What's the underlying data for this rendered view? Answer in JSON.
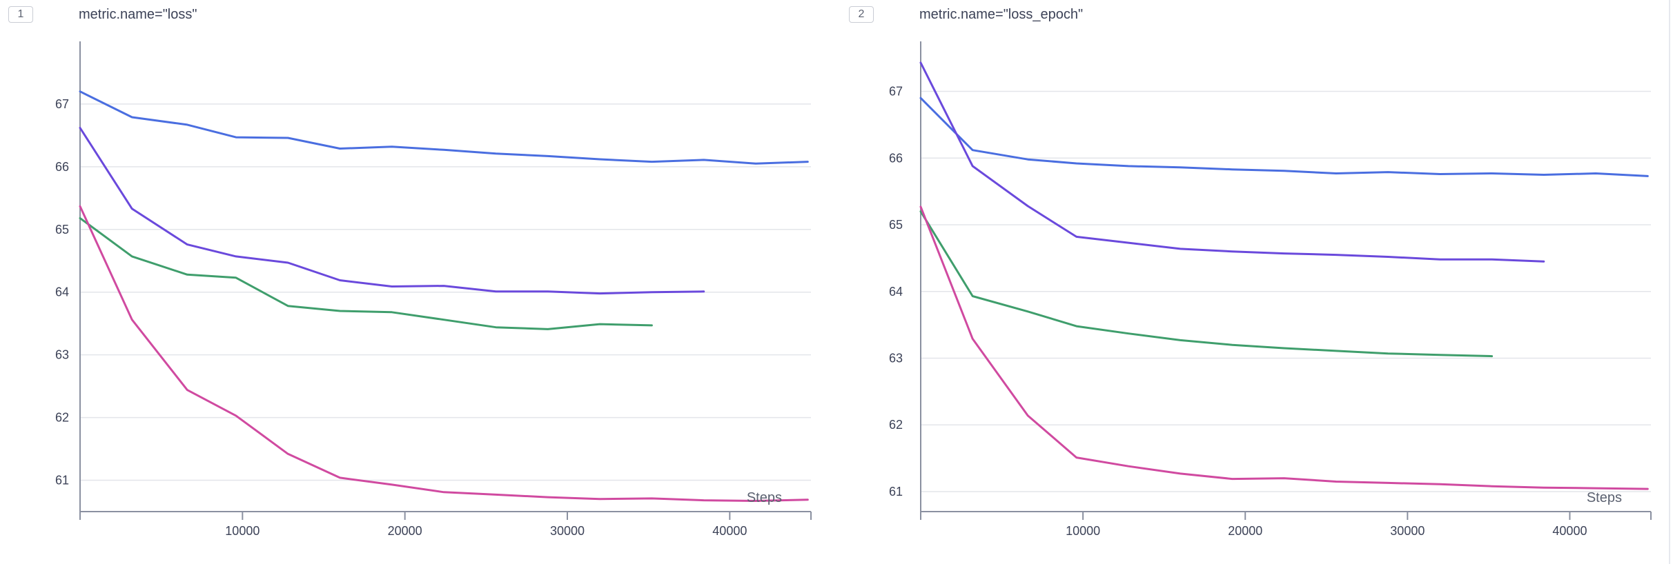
{
  "colors": {
    "axis": "#8a90a0",
    "grid": "#e3e5ea",
    "series": [
      "#4a6ee0",
      "#6a49dc",
      "#3f9e6c",
      "#d04aa0"
    ]
  },
  "panels": [
    {
      "index": "1",
      "title": "metric.name=\"loss\""
    },
    {
      "index": "2",
      "title": "metric.name=\"loss_epoch\""
    }
  ],
  "chart_data": [
    {
      "type": "line",
      "title": "metric.name=\"loss\"",
      "xlabel": "Steps",
      "ylabel": "",
      "xlim": [
        0,
        45000
      ],
      "ylim": [
        60.5,
        68.0
      ],
      "xticks": [
        10000,
        20000,
        30000,
        40000
      ],
      "yticks": [
        61,
        62,
        63,
        64,
        65,
        66,
        67
      ],
      "grid": true,
      "series": [
        {
          "x": [
            0,
            3200,
            6600,
            9600,
            12800,
            16000,
            19200,
            22400,
            25600,
            28800,
            32000,
            35200,
            38400,
            41600,
            44800
          ],
          "y": [
            67.2,
            66.79,
            66.67,
            66.47,
            66.46,
            66.29,
            66.32,
            66.27,
            66.21,
            66.17,
            66.12,
            66.08,
            66.11,
            66.05,
            66.08
          ]
        },
        {
          "x": [
            0,
            3200,
            6600,
            9600,
            12800,
            16000,
            19200,
            22400,
            25600,
            28800,
            32000,
            35200,
            38400
          ],
          "y": [
            66.62,
            65.33,
            64.76,
            64.57,
            64.47,
            64.19,
            64.09,
            64.1,
            64.01,
            64.01,
            63.98,
            64.0,
            64.01
          ]
        },
        {
          "x": [
            0,
            3200,
            6600,
            9600,
            12800,
            16000,
            19200,
            22400,
            25600,
            28800,
            32000,
            35200
          ],
          "y": [
            65.18,
            64.57,
            64.28,
            64.23,
            63.78,
            63.7,
            63.68,
            63.56,
            63.44,
            63.41,
            63.49,
            63.47
          ]
        },
        {
          "x": [
            0,
            3200,
            6600,
            9600,
            12800,
            16000,
            19200,
            22400,
            25600,
            28800,
            32000,
            35200,
            38400,
            41600,
            44800
          ],
          "y": [
            65.37,
            63.56,
            62.44,
            62.03,
            61.42,
            61.04,
            60.93,
            60.81,
            60.77,
            60.73,
            60.7,
            60.71,
            60.68,
            60.67,
            60.69
          ]
        }
      ]
    },
    {
      "type": "line",
      "title": "metric.name=\"loss_epoch\"",
      "xlabel": "Steps",
      "ylabel": "",
      "xlim": [
        0,
        45000
      ],
      "ylim": [
        60.7,
        67.75
      ],
      "xticks": [
        10000,
        20000,
        30000,
        40000
      ],
      "yticks": [
        61,
        62,
        63,
        64,
        65,
        66,
        67
      ],
      "grid": true,
      "series": [
        {
          "x": [
            0,
            3200,
            6600,
            9600,
            12800,
            16000,
            19200,
            22400,
            25600,
            28800,
            32000,
            35200,
            38400,
            41600,
            44800
          ],
          "y": [
            66.9,
            66.12,
            65.98,
            65.92,
            65.88,
            65.86,
            65.83,
            65.81,
            65.77,
            65.79,
            65.76,
            65.77,
            65.75,
            65.77,
            65.73
          ]
        },
        {
          "x": [
            0,
            3200,
            6600,
            9600,
            12800,
            16000,
            19200,
            22400,
            25600,
            28800,
            32000,
            35200,
            38400
          ],
          "y": [
            67.43,
            65.88,
            65.28,
            64.82,
            64.73,
            64.64,
            64.6,
            64.57,
            64.55,
            64.52,
            64.48,
            64.48,
            64.45
          ]
        },
        {
          "x": [
            0,
            3200,
            6600,
            9600,
            12800,
            16000,
            19200,
            22400,
            25600,
            28800,
            32000,
            35200
          ],
          "y": [
            65.2,
            63.93,
            63.7,
            63.48,
            63.37,
            63.27,
            63.2,
            63.15,
            63.11,
            63.07,
            63.05,
            63.03
          ]
        },
        {
          "x": [
            0,
            3200,
            6600,
            9600,
            12800,
            16000,
            19200,
            22400,
            25600,
            28800,
            32000,
            35200,
            38400,
            41600,
            44800
          ],
          "y": [
            65.27,
            63.29,
            62.14,
            61.51,
            61.38,
            61.27,
            61.19,
            61.2,
            61.15,
            61.13,
            61.11,
            61.08,
            61.06,
            61.05,
            61.04
          ]
        }
      ]
    }
  ]
}
